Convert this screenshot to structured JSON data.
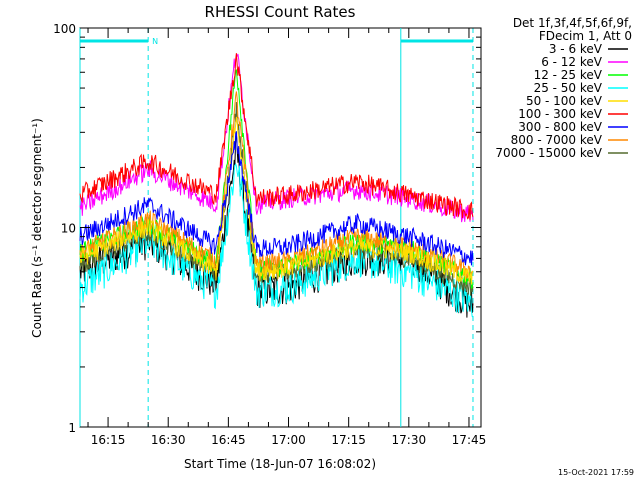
{
  "chart_data": {
    "type": "line",
    "title": "RHESSI Count Rates",
    "xlabel": "Start Time (18-Jun-07 16:08:02)",
    "ylabel": "Count Rate (s⁻¹ detector segment⁻¹)",
    "y_scale": "log",
    "ylim": [
      1,
      100
    ],
    "xlim": [
      "16:08",
      "17:48"
    ],
    "y_ticks": [
      "1",
      "10",
      "100"
    ],
    "x_ticks": [
      "16:15",
      "16:30",
      "16:45",
      "17:00",
      "17:15",
      "17:30",
      "17:45"
    ],
    "grid": false,
    "legend": {
      "placement": "right",
      "header": [
        "Det 1f,3f,4f,5f,6f,9f,",
        "FDecim 1, Att 0"
      ]
    },
    "series": [
      {
        "name": "3 - 6 keV",
        "color": "#000000",
        "values": [
          6.0,
          8.5,
          5.2,
          25.0,
          4.8,
          5.0,
          7.0,
          7.0,
          4.0
        ]
      },
      {
        "name": "6 - 12 keV",
        "color": "#ff00ff",
        "values": [
          12.5,
          19.5,
          13.0,
          78.0,
          13.0,
          14.0,
          15.5,
          14.0,
          11.5
        ]
      },
      {
        "name": "12 - 25 keV",
        "color": "#00ff00",
        "values": [
          7.5,
          10.5,
          6.5,
          65.0,
          6.2,
          6.5,
          8.5,
          8.0,
          5.5
        ]
      },
      {
        "name": "25 - 50 keV",
        "color": "#00ffff",
        "values": [
          5.0,
          8.5,
          4.8,
          22.0,
          4.8,
          5.0,
          7.0,
          6.0,
          4.2
        ]
      },
      {
        "name": "50 - 100 keV",
        "color": "#ffdd00",
        "values": [
          7.0,
          10.0,
          6.0,
          35.0,
          6.0,
          6.3,
          8.0,
          7.5,
          5.5
        ]
      },
      {
        "name": "100 - 300 keV",
        "color": "#ff0000",
        "values": [
          14.5,
          21.5,
          14.5,
          72.0,
          14.0,
          14.5,
          17.0,
          14.5,
          12.0
        ]
      },
      {
        "name": "300 - 800 keV",
        "color": "#0000ff",
        "values": [
          9.0,
          13.0,
          8.0,
          28.0,
          7.8,
          8.0,
          10.5,
          9.0,
          7.0
        ]
      },
      {
        "name": "800 - 7000 keV",
        "color": "#ff8800",
        "values": [
          7.5,
          11.0,
          6.8,
          45.0,
          6.5,
          6.8,
          9.0,
          8.0,
          6.0
        ]
      },
      {
        "name": "7000 - 15000 keV",
        "color": "#556b2f",
        "values": [
          6.5,
          9.5,
          6.0,
          40.0,
          5.8,
          6.0,
          7.8,
          7.0,
          5.0
        ]
      }
    ],
    "x": [
      "16:08",
      "16:25",
      "16:42",
      "16:47",
      "16:52",
      "17:00",
      "17:17",
      "17:30",
      "17:46"
    ],
    "annotations": {
      "marker_label": "N",
      "marker_color": "#00e5e5",
      "solid_vlines": [
        "16:08",
        "17:28"
      ],
      "dashed_vlines": [
        "16:25",
        "17:46"
      ],
      "horizontal_bars": [
        [
          "16:08",
          "16:25"
        ],
        [
          "17:28",
          "17:46"
        ]
      ]
    },
    "timestamp": "15-Oct-2021 17:59"
  }
}
